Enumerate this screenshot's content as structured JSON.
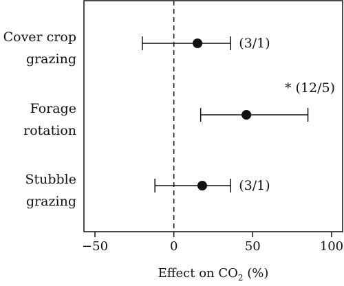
{
  "chart_data": {
    "type": "scatter",
    "title": "",
    "xlabel": {
      "before_sub": "Effect on CO",
      "sub": "2",
      "after_sub": " (%)"
    },
    "xlim": [
      -57,
      107
    ],
    "xticks": [
      -50,
      0,
      50,
      100
    ],
    "xtick_labels": [
      "−50",
      "0",
      "50",
      "100"
    ],
    "reference_line": 0,
    "grid": false,
    "legend": "none",
    "categories": [
      {
        "lines": [
          "Cover crop",
          "grazing"
        ],
        "estimate": 15,
        "ci": [
          -20,
          36
        ],
        "annotation": "(3/1)",
        "marker": ""
      },
      {
        "lines": [
          "Forage",
          "rotation"
        ],
        "estimate": 46,
        "ci": [
          17,
          85
        ],
        "annotation": "(12/5)",
        "marker": "*"
      },
      {
        "lines": [
          "Stubble",
          "grazing"
        ],
        "estimate": 18,
        "ci": [
          -12,
          36
        ],
        "annotation": "(3/1)",
        "marker": ""
      }
    ],
    "colors": {
      "points": "#111111",
      "axes": "#111111"
    }
  }
}
